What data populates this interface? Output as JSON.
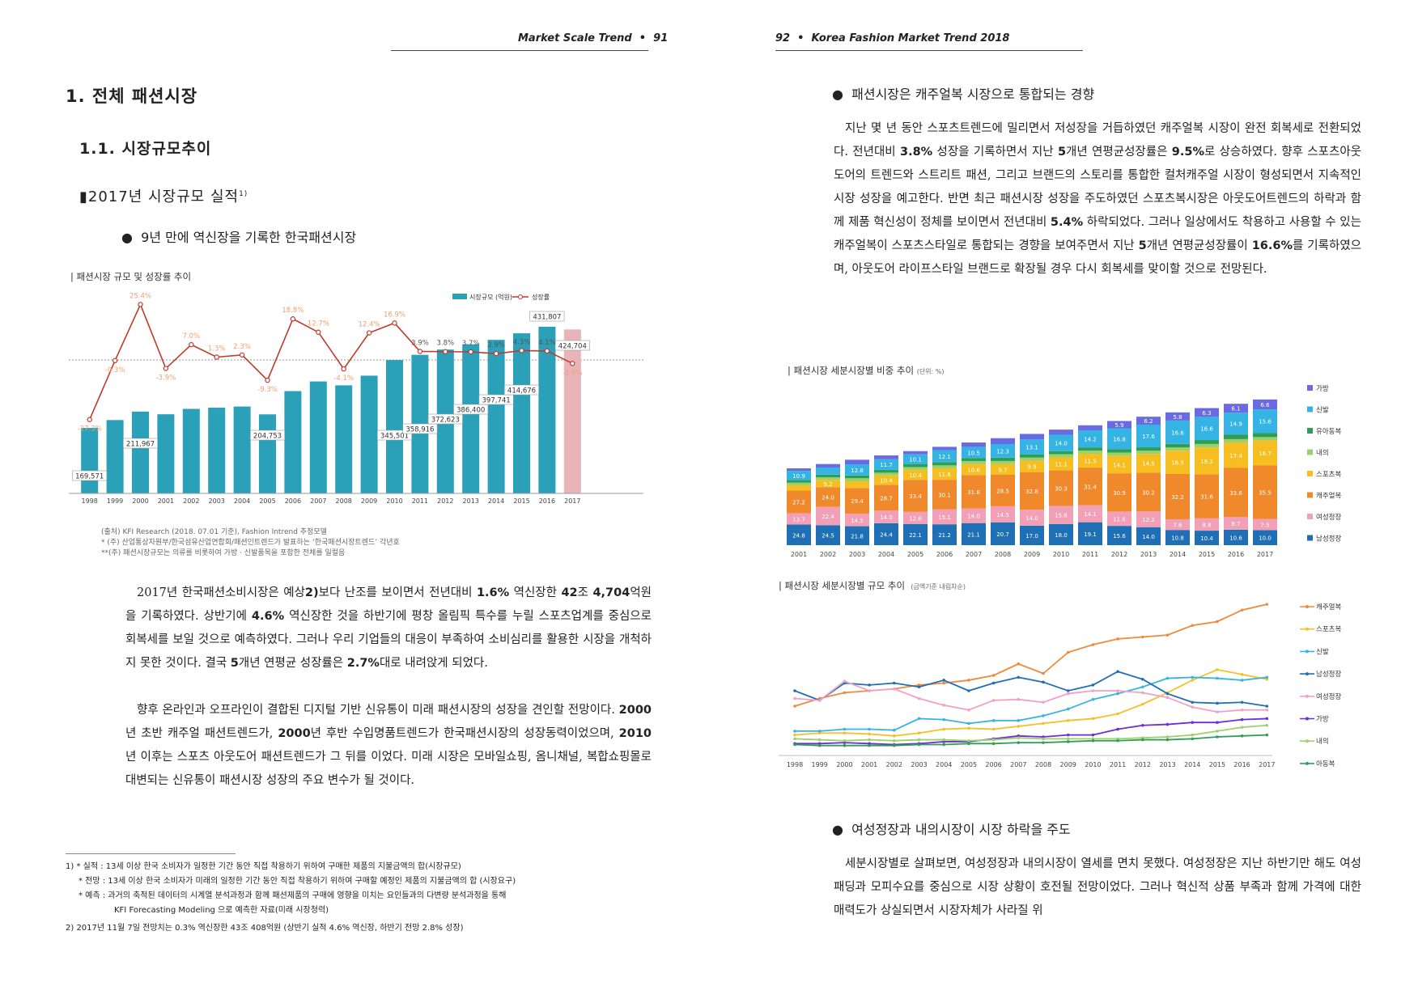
{
  "header": {
    "left_run": "Market Scale Trend",
    "left_page": "91",
    "right_page": "92",
    "right_run": "Korea Fashion Market Trend 2018"
  },
  "left": {
    "h1": "1. 전체 패션시장",
    "h2": "1.1. 시장규모추이",
    "h3": "2017년 시장규모 실적",
    "h3_sup": "1)",
    "bullet": "9년 만에 역신장을 기록한 한국패션시장",
    "chart_title": "| 패션시장 규모 및 성장률 추이",
    "source": "(출처) KFI Research (2018. 07.01 기준), Fashion Intrend 추정모델",
    "note1": "* (주) 산업통상자원부/한국섬유산업연합회/패션인트렌드가 발표하는 ‘한국패션시장트렌드’ 각년호",
    "note2": "**(주) 패션시장규모는 의류를 비롯하여 가방 · 신발품목을 포함한 전체를 일컬음",
    "para1_html": "2017년 한국패션소비시장은 예상<b>2)</b>보다 난조를 보이면서 전년대비 <b>1.6%</b> 역신장한 <b>42</b>조 <b>4,704</b>억원을 기록하였다. 상반기에 <b>4.6%</b> 역신장한 것을 하반기에 평창 올림픽 특수를 누릴 스포츠업계를 중심으로 회복세를 보일 것으로 예측하였다. 그러나 우리 기업들의 대응이 부족하여 소비심리를 활용한 시장을 개척하지 못한 것이다. 결국 <b>5</b>개년 연평균 성장률은 <b>2.7%</b>대로 내려앉게 되었다.",
    "para2_html": "향후 온라인과 오프라인이 결합된 디지털 기반 신유통이 미래 패션시장의 성장을 견인할 전망이다. <b>2000</b>년 초반 캐주얼 패션트렌드가, <b>2000</b>년 후반 수입명품트렌드가 한국패션시장의 성장동력이었으며, <b>2010</b>년 이후는 스포츠 아웃도어 패션트렌드가 그 뒤를 이었다. 미래 시장은 모바일쇼핑, 옴니채널, 복합쇼핑몰로 대변되는 신유통이 패션시장 성장의 주요 변수가 될 것이다.",
    "fn1_a": "1) * 실적 : 13세 이상 한국 소비자가 일정한 기간 동안 직접 착용하기 위하여 구매한 제품의 지불금액의 합(시장규모)",
    "fn1_b": "* 전망 : 13세 이상 한국 소비자가 미래의 일정한 기간 동안 직접 착용하기 위하여 구매할 예정인 제품의 지불금액의 합 (시장요구)",
    "fn1_c": "* 예측 : 과거의 축적된 데이터의 시계열 분석과정과 함께 패션제품의 구매에 영향을 미치는 요인들과의 다변량 분석과정을 통해",
    "fn1_d": "KFI Forecasting Modeling 으로 예측한 자료(미래 시장청력)",
    "fn2": "2) 2017년 11월 7일 전망치는 0.3% 역신장한 43조 408억원 (상반기 실적 4.6% 역신장, 하반기 전망 2.8% 성장)"
  },
  "right": {
    "bullet1": "패션시장은 캐주얼복 시장으로 통합되는 경향",
    "para1_html": "지난 몇 년 동안 스포츠트렌드에 밀리면서 저성장을 거듭하였던 캐주얼복 시장이 완전 회복세로 전환되었다. 전년대비 <b>3.8%</b> 성장을 기록하면서 지난 <b>5</b>개년 연평균성장률은 <b>9.5%</b>로 상승하였다. 향후 스포츠아웃도어의 트렌드와 스트리트 패션, 그리고 브랜드의 스토리를 통합한 컬처캐주얼 시장이 형성되면서 지속적인 시장 성장을 예고한다. 반면 최근 패션시장 성장을 주도하였던 스포츠복시장은 아웃도어트렌드의 하락과 함께 제품 혁신성이 정체를 보이면서 전년대비 <b>5.4%</b> 하락되었다. 그러나 일상에서도 착용하고 사용할 수 있는 캐주얼복이 스포츠스타일로 통합되는 경향을 보여주면서 지난 <b>5</b>개년 연평균성장률이 <b>16.6%</b>를 기록하였으며, 아웃도어 라이프스타일 브랜드로 확장될 경우 다시 회복세를 맞이할 것으로 전망된다.",
    "chart2_title": "| 패션시장 세분시장별 비중 추이",
    "chart2_unit": "(단위: %)",
    "chart3_title": "| 패션시장 세분시장별 규모 추이",
    "chart3_unit": "(금액기준 내림차순)",
    "bullet2": "여성정장과 내의시장이 시장 하락을 주도",
    "para2_html": "세분시장별로 살펴보면, 여성정장과 내의시장이 열세를 면치 못했다. 여성정장은 지난 하반기만 해도 여성패딩과 모피수요를 중심으로 시장 상황이 호전될 전망이었다. 그러나 혁신적 상품 부족과 함께 가격에 대한 매력도가 상실되면서 시장자체가 사라질 위"
  },
  "chart_data": [
    {
      "type": "bar",
      "title": "| 패션시장 규모 및 성장률 추이",
      "categories": [
        "1998",
        "1999",
        "2000",
        "2001",
        "2002",
        "2003",
        "2004",
        "2005",
        "2006",
        "2007",
        "2008",
        "2009",
        "2010",
        "2011",
        "2012",
        "2013",
        "2014",
        "2015",
        "2016",
        "2017"
      ],
      "series": [
        {
          "name": "시장규모 (억원)",
          "type": "bar",
          "color": "#2aa1b8",
          "forecast_color": "#e8b4b8",
          "values": [
            169571,
            190000,
            211967,
            205000,
            219000,
            222000,
            225000,
            204753,
            265000,
            290000,
            280000,
            305000,
            345501,
            358916,
            372623,
            386400,
            397741,
            414676,
            431807,
            424704
          ]
        },
        {
          "name": "성장률",
          "type": "line",
          "color": "#c0392b",
          "values": [
            -27.3,
            -0.3,
            25.4,
            -3.9,
            7.0,
            1.3,
            2.3,
            -9.3,
            18.8,
            12.7,
            -4.1,
            12.4,
            16.9,
            3.9,
            3.8,
            3.7,
            2.9,
            4.3,
            4.1,
            -1.6
          ]
        }
      ],
      "bar_labels": {
        "0": "169,571",
        "2": "211,967",
        "7": "204,753",
        "12": "345,501",
        "13": "358,916",
        "14": "372,623",
        "15": "386,400",
        "16": "397,741",
        "17": "414,676",
        "18": "431,807",
        "19": "424,704"
      },
      "line_labels": [
        "-27.3%",
        "-0.3%",
        "25.4%",
        "-3.9%",
        "7.0%",
        "1.3%",
        "2.3%",
        "-9.3%",
        "18.8%",
        "12.7%",
        "-4.1%",
        "12.4%",
        "16.9%",
        "3.9%",
        "3.8%",
        "3.7%",
        "2.9%",
        "4.3%",
        "4.1%",
        "-1.6%"
      ]
    },
    {
      "type": "bar",
      "stacked": true,
      "title": "| 패션시장 세분시장별 비중 추이",
      "ylabel": "(단위: %)",
      "categories": [
        "2001",
        "2002",
        "2003",
        "2004",
        "2005",
        "2006",
        "2007",
        "2008",
        "2009",
        "2010",
        "2011",
        "2012",
        "2013",
        "2014",
        "2015",
        "2016",
        "2017"
      ],
      "series": [
        {
          "name": "남성정장",
          "color": "#1f6fb5",
          "values": [
            24.8,
            24.5,
            21.8,
            24.4,
            22.1,
            21.2,
            21.1,
            20.7,
            17.0,
            18.0,
            19.1,
            15.6,
            14.0,
            10.8,
            10.4,
            10.6,
            10.0
          ]
        },
        {
          "name": "여성정장",
          "color": "#f2a0b8",
          "values": [
            13.7,
            22.4,
            14.5,
            14.0,
            12.6,
            15.1,
            14.0,
            14.5,
            14.0,
            15.6,
            14.1,
            11.6,
            12.2,
            7.6,
            8.8,
            8.7,
            7.5
          ]
        },
        {
          "name": "캐주얼복",
          "color": "#f0892b",
          "values": [
            27.2,
            24.0,
            29.4,
            28.7,
            33.4,
            30.1,
            31.8,
            28.5,
            32.8,
            30.3,
            31.4,
            30.9,
            30.2,
            32.2,
            31.6,
            33.6,
            35.5
          ]
        },
        {
          "name": "스포츠복",
          "color": "#f6be20",
          "values": [
            6.4,
            9.2,
            7.8,
            10.4,
            10.4,
            11.6,
            10.6,
            9.7,
            9.9,
            11.1,
            11.5,
            14.1,
            14.5,
            16.5,
            19.2,
            17.4,
            16.7
          ]
        },
        {
          "name": "내의",
          "color": "#9bd06a",
          "values": [
            3.1,
            3.0,
            3.5,
            3.0,
            2.9,
            3.0,
            2.9,
            2.8,
            2.8,
            2.8,
            2.7,
            2.7,
            2.5,
            2.4,
            2.5,
            2.3,
            2.2
          ]
        },
        {
          "name": "유아동복",
          "color": "#2e9e55",
          "values": [
            3.3,
            3.3,
            3.2,
            3.3,
            3.2,
            3.3,
            2.9,
            3.0,
            2.8,
            2.6,
            2.6,
            2.8,
            2.6,
            2.4,
            2.8,
            3.2,
            2.8
          ]
        },
        {
          "name": "신발",
          "color": "#35b4e4",
          "values": [
            10.9,
            8.7,
            12.8,
            11.7,
            10.1,
            12.1,
            10.5,
            12.3,
            13.1,
            14.0,
            14.2,
            16.8,
            17.6,
            16.6,
            16.6,
            14.9,
            15.6
          ]
        },
        {
          "name": "가방",
          "color": "#6a6be2",
          "values": [
            3.1,
            4.3,
            5.3,
            4.2,
            3.3,
            3.4,
            4.3,
            5.3,
            4.7,
            4.4,
            4.2,
            5.9,
            6.2,
            5.8,
            6.3,
            6.1,
            6.6
          ]
        }
      ]
    },
    {
      "type": "line",
      "title": "| 패션시장 세분시장별 규모 추이",
      "ylabel": "(금액기준 내림차순)",
      "categories": [
        "1998",
        "1999",
        "2000",
        "2001",
        "2002",
        "2003",
        "2004",
        "2005",
        "2006",
        "2007",
        "2008",
        "2009",
        "2010",
        "2011",
        "2012",
        "2013",
        "2014",
        "2015",
        "2016",
        "2017"
      ],
      "series": [
        {
          "name": "캐주얼복",
          "color": "#ef8a3a",
          "values": [
            48,
            56,
            62,
            64,
            66,
            70,
            72,
            75,
            80,
            92,
            82,
            104,
            112,
            118,
            120,
            122,
            132,
            136,
            148,
            154
          ]
        },
        {
          "name": "스포츠복",
          "color": "#f6c029",
          "values": [
            18,
            20,
            20,
            19,
            17,
            20,
            24,
            25,
            24,
            27,
            30,
            33,
            35,
            40,
            50,
            62,
            75,
            86,
            81,
            76
          ]
        },
        {
          "name": "신발",
          "color": "#35b4e4",
          "values": [
            22,
            22,
            24,
            24,
            23,
            35,
            34,
            30,
            33,
            33,
            38,
            45,
            55,
            61,
            68,
            77,
            78,
            77,
            75,
            78
          ]
        },
        {
          "name": "남성정장",
          "color": "#1f6fb5",
          "values": [
            64,
            54,
            72,
            70,
            72,
            68,
            75,
            64,
            72,
            78,
            73,
            64,
            70,
            84,
            76,
            61,
            52,
            51,
            52,
            48
          ]
        },
        {
          "name": "여성정장",
          "color": "#f2a0c8",
          "values": [
            56,
            54,
            74,
            64,
            66,
            56,
            49,
            44,
            54,
            55,
            52,
            61,
            64,
            64,
            62,
            57,
            47,
            42,
            44,
            44
          ]
        },
        {
          "name": "가방",
          "color": "#6c2ed6",
          "values": [
            9,
            9,
            10,
            9,
            8,
            9,
            11,
            11,
            14,
            17,
            16,
            18,
            18,
            24,
            28,
            29,
            31,
            31,
            34,
            35
          ]
        },
        {
          "name": "내의",
          "color": "#9bd06a",
          "values": [
            14,
            13,
            12,
            13,
            12,
            13,
            13,
            12,
            13,
            15,
            14,
            14,
            14,
            14,
            15,
            16,
            18,
            22,
            26,
            28
          ]
        },
        {
          "name": "아동복",
          "color": "#2e9e55",
          "values": [
            8,
            7,
            7,
            7,
            7,
            8,
            8,
            9,
            9,
            10,
            10,
            11,
            12,
            12,
            13,
            13,
            14,
            16,
            17,
            18
          ]
        }
      ]
    }
  ]
}
